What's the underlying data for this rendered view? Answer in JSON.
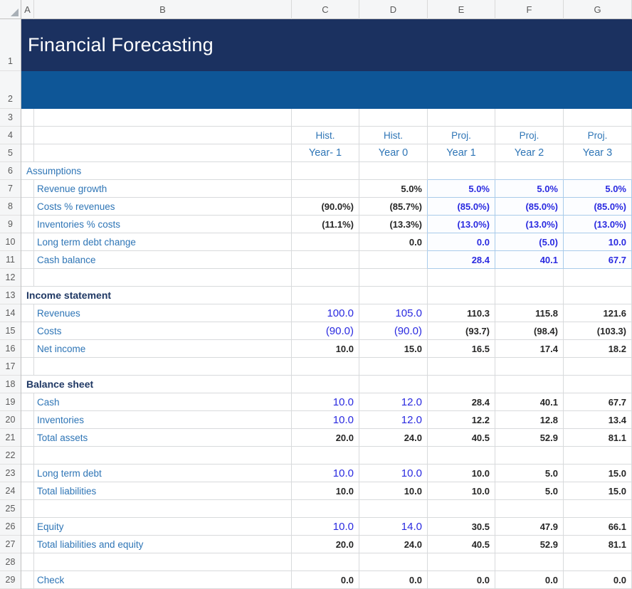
{
  "title": "Financial Forecasting",
  "columns": [
    "A",
    "B",
    "C",
    "D",
    "E",
    "F",
    "G"
  ],
  "row_numbers": [
    "1",
    "2",
    "3",
    "4",
    "5",
    "6",
    "7",
    "8",
    "9",
    "10",
    "11",
    "12",
    "13",
    "14",
    "15",
    "16",
    "17",
    "18",
    "19",
    "20",
    "21",
    "22",
    "23",
    "24",
    "25",
    "26",
    "27",
    "28",
    "29"
  ],
  "colors": {
    "banner_dark": "#1B3160",
    "banner_blue": "#0E5697",
    "label_blue": "#2E75B6",
    "section_navy": "#1F3864",
    "input_blue": "#2A2AE0",
    "value_dark": "#262626"
  },
  "grid_rows": [
    {
      "n": "3",
      "type": "empty",
      "label": "",
      "cells": [
        null,
        null,
        null,
        null,
        null
      ]
    },
    {
      "n": "4",
      "type": "empty",
      "label": "",
      "cells": [
        {
          "v": "Hist.",
          "s": "hdr"
        },
        {
          "v": "Hist.",
          "s": "hdr"
        },
        {
          "v": "Proj.",
          "s": "hdr"
        },
        {
          "v": "Proj.",
          "s": "hdr"
        },
        {
          "v": "Proj.",
          "s": "hdr"
        }
      ]
    },
    {
      "n": "5",
      "type": "empty",
      "label": "",
      "cells": [
        {
          "v": "Year- 1",
          "s": "hdr2"
        },
        {
          "v": "Year 0",
          "s": "hdr2"
        },
        {
          "v": "Year 1",
          "s": "hdr2"
        },
        {
          "v": "Year 2",
          "s": "hdr2"
        },
        {
          "v": "Year 3",
          "s": "hdr2"
        }
      ]
    },
    {
      "n": "6",
      "type": "assump",
      "label": "Assumptions",
      "cells": [
        null,
        null,
        null,
        null,
        null
      ]
    },
    {
      "n": "7",
      "type": "item",
      "label": "Revenue growth",
      "cells": [
        null,
        {
          "v": "5.0%",
          "s": "dark"
        },
        {
          "v": "5.0%",
          "s": "blue"
        },
        {
          "v": "5.0%",
          "s": "blue"
        },
        {
          "v": "5.0%",
          "s": "blue"
        }
      ]
    },
    {
      "n": "8",
      "type": "item",
      "label": "Costs % revenues",
      "cells": [
        {
          "v": "(90.0%)",
          "s": "dark"
        },
        {
          "v": "(85.7%)",
          "s": "dark"
        },
        {
          "v": "(85.0%)",
          "s": "blue"
        },
        {
          "v": "(85.0%)",
          "s": "blue"
        },
        {
          "v": "(85.0%)",
          "s": "blue"
        }
      ]
    },
    {
      "n": "9",
      "type": "item",
      "label": "Inventories % costs",
      "cells": [
        {
          "v": "(11.1%)",
          "s": "dark"
        },
        {
          "v": "(13.3%)",
          "s": "dark"
        },
        {
          "v": "(13.0%)",
          "s": "blue"
        },
        {
          "v": "(13.0%)",
          "s": "blue"
        },
        {
          "v": "(13.0%)",
          "s": "blue"
        }
      ]
    },
    {
      "n": "10",
      "type": "item",
      "label": "Long term debt change",
      "cells": [
        null,
        {
          "v": "0.0",
          "s": "dark"
        },
        {
          "v": "0.0",
          "s": "blue"
        },
        {
          "v": "(5.0)",
          "s": "blue"
        },
        {
          "v": "10.0",
          "s": "blue"
        }
      ]
    },
    {
      "n": "11",
      "type": "item",
      "label": "Cash balance",
      "cells": [
        null,
        null,
        {
          "v": "28.4",
          "s": "blue"
        },
        {
          "v": "40.1",
          "s": "blue"
        },
        {
          "v": "67.7",
          "s": "blue"
        }
      ]
    },
    {
      "n": "12",
      "type": "empty",
      "label": "",
      "cells": [
        null,
        null,
        null,
        null,
        null
      ]
    },
    {
      "n": "13",
      "type": "section",
      "label": "Income statement",
      "cells": [
        null,
        null,
        null,
        null,
        null
      ]
    },
    {
      "n": "14",
      "type": "item",
      "label": "Revenues",
      "cells": [
        {
          "v": "100.0",
          "s": "bluelg"
        },
        {
          "v": "105.0",
          "s": "bluelg"
        },
        {
          "v": "110.3",
          "s": "dark"
        },
        {
          "v": "115.8",
          "s": "dark"
        },
        {
          "v": "121.6",
          "s": "dark"
        }
      ]
    },
    {
      "n": "15",
      "type": "item",
      "label": "Costs",
      "cells": [
        {
          "v": "(90.0)",
          "s": "bluelg"
        },
        {
          "v": "(90.0)",
          "s": "bluelg"
        },
        {
          "v": "(93.7)",
          "s": "dark"
        },
        {
          "v": "(98.4)",
          "s": "dark"
        },
        {
          "v": "(103.3)",
          "s": "dark"
        }
      ]
    },
    {
      "n": "16",
      "type": "item",
      "label": "Net income",
      "cells": [
        {
          "v": "10.0",
          "s": "dark"
        },
        {
          "v": "15.0",
          "s": "dark"
        },
        {
          "v": "16.5",
          "s": "dark"
        },
        {
          "v": "17.4",
          "s": "dark"
        },
        {
          "v": "18.2",
          "s": "dark"
        }
      ]
    },
    {
      "n": "17",
      "type": "empty",
      "label": "",
      "cells": [
        null,
        null,
        null,
        null,
        null
      ]
    },
    {
      "n": "18",
      "type": "section",
      "label": "Balance sheet",
      "cells": [
        null,
        null,
        null,
        null,
        null
      ]
    },
    {
      "n": "19",
      "type": "item",
      "label": "Cash",
      "cells": [
        {
          "v": "10.0",
          "s": "bluelg"
        },
        {
          "v": "12.0",
          "s": "bluelg"
        },
        {
          "v": "28.4",
          "s": "dark"
        },
        {
          "v": "40.1",
          "s": "dark"
        },
        {
          "v": "67.7",
          "s": "dark"
        }
      ]
    },
    {
      "n": "20",
      "type": "item",
      "label": "Inventories",
      "cells": [
        {
          "v": "10.0",
          "s": "bluelg"
        },
        {
          "v": "12.0",
          "s": "bluelg"
        },
        {
          "v": "12.2",
          "s": "dark"
        },
        {
          "v": "12.8",
          "s": "dark"
        },
        {
          "v": "13.4",
          "s": "dark"
        }
      ]
    },
    {
      "n": "21",
      "type": "item",
      "label": "Total assets",
      "cells": [
        {
          "v": "20.0",
          "s": "dark"
        },
        {
          "v": "24.0",
          "s": "dark"
        },
        {
          "v": "40.5",
          "s": "dark"
        },
        {
          "v": "52.9",
          "s": "dark"
        },
        {
          "v": "81.1",
          "s": "dark"
        }
      ]
    },
    {
      "n": "22",
      "type": "empty",
      "label": "",
      "cells": [
        null,
        null,
        null,
        null,
        null
      ]
    },
    {
      "n": "23",
      "type": "item",
      "label": "Long term debt",
      "cells": [
        {
          "v": "10.0",
          "s": "bluelg"
        },
        {
          "v": "10.0",
          "s": "bluelg"
        },
        {
          "v": "10.0",
          "s": "dark"
        },
        {
          "v": "5.0",
          "s": "dark"
        },
        {
          "v": "15.0",
          "s": "dark"
        }
      ]
    },
    {
      "n": "24",
      "type": "item",
      "label": "Total liabilities",
      "cells": [
        {
          "v": "10.0",
          "s": "dark"
        },
        {
          "v": "10.0",
          "s": "dark"
        },
        {
          "v": "10.0",
          "s": "dark"
        },
        {
          "v": "5.0",
          "s": "dark"
        },
        {
          "v": "15.0",
          "s": "dark"
        }
      ]
    },
    {
      "n": "25",
      "type": "empty",
      "label": "",
      "cells": [
        null,
        null,
        null,
        null,
        null
      ]
    },
    {
      "n": "26",
      "type": "item",
      "label": "Equity",
      "cells": [
        {
          "v": "10.0",
          "s": "bluelg"
        },
        {
          "v": "14.0",
          "s": "bluelg"
        },
        {
          "v": "30.5",
          "s": "dark"
        },
        {
          "v": "47.9",
          "s": "dark"
        },
        {
          "v": "66.1",
          "s": "dark"
        }
      ]
    },
    {
      "n": "27",
      "type": "item",
      "label": "Total liabilities and equity",
      "cells": [
        {
          "v": "20.0",
          "s": "dark"
        },
        {
          "v": "24.0",
          "s": "dark"
        },
        {
          "v": "40.5",
          "s": "dark"
        },
        {
          "v": "52.9",
          "s": "dark"
        },
        {
          "v": "81.1",
          "s": "dark"
        }
      ]
    },
    {
      "n": "28",
      "type": "empty",
      "label": "",
      "cells": [
        null,
        null,
        null,
        null,
        null
      ]
    },
    {
      "n": "29",
      "type": "item",
      "label": "Check",
      "cells": [
        {
          "v": "0.0",
          "s": "dark"
        },
        {
          "v": "0.0",
          "s": "dark"
        },
        {
          "v": "0.0",
          "s": "dark"
        },
        {
          "v": "0.0",
          "s": "dark"
        },
        {
          "v": "0.0",
          "s": "dark"
        }
      ]
    }
  ]
}
